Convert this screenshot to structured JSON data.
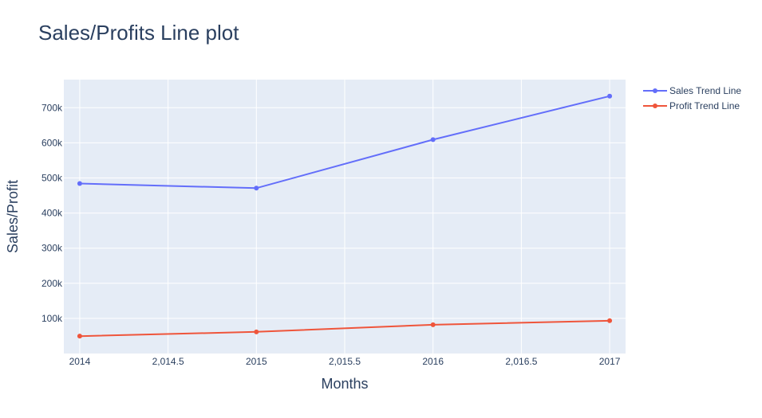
{
  "chart_data": {
    "type": "line",
    "title": "Sales/Profits Line plot",
    "xlabel": "Months",
    "ylabel": "Sales/Profit",
    "x": [
      2014,
      2015,
      2016,
      2017
    ],
    "xlim": [
      2013.91,
      2017.09
    ],
    "ylim": [
      0,
      780000
    ],
    "x_ticks": [
      2014,
      2014.5,
      2015,
      2015.5,
      2016,
      2016.5,
      2017
    ],
    "x_tick_labels": [
      "2014",
      "2,014.5",
      "2015",
      "2,015.5",
      "2016",
      "2,016.5",
      "2017"
    ],
    "y_ticks": [
      100000,
      200000,
      300000,
      400000,
      500000,
      600000,
      700000
    ],
    "y_tick_labels": [
      "100k",
      "200k",
      "300k",
      "400k",
      "500k",
      "600k",
      "700k"
    ],
    "grid": true,
    "legend_position": "top-right",
    "plot_background": "#e5ecf6",
    "series": [
      {
        "name": "Sales Trend Line",
        "color": "#636efa",
        "values": [
          484000,
          471000,
          609000,
          733000
        ]
      },
      {
        "name": "Profit Trend Line",
        "color": "#ef553b",
        "values": [
          49500,
          61600,
          81800,
          93400
        ]
      }
    ]
  }
}
